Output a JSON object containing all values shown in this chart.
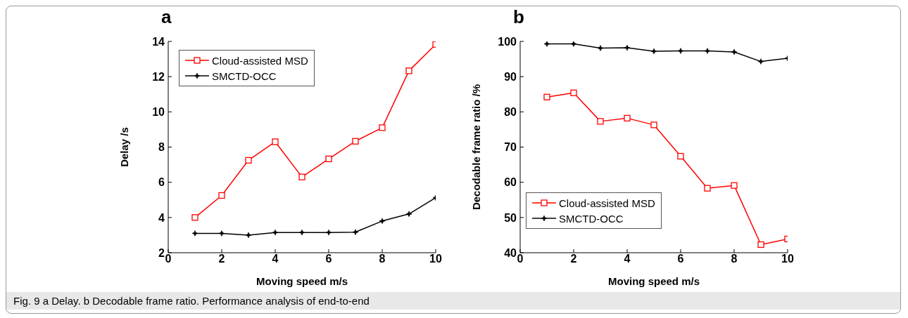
{
  "chart_data": [
    {
      "type": "line",
      "title": "a",
      "xlabel": "Moving speed m/s",
      "ylabel": "Delay /s",
      "x": [
        1,
        2,
        3,
        4,
        5,
        6,
        7,
        8,
        9,
        10
      ],
      "series": [
        {
          "name": "Cloud-assisted MSD",
          "color": "#ff0000",
          "marker": "square",
          "values": [
            4.0,
            5.25,
            7.25,
            8.3,
            6.3,
            7.33,
            8.33,
            9.1,
            12.33,
            13.83
          ]
        },
        {
          "name": "SMCTD-OCC",
          "color": "#000000",
          "marker": "star",
          "values": [
            3.1,
            3.1,
            3.0,
            3.15,
            3.15,
            3.15,
            3.17,
            3.8,
            4.2,
            5.12
          ]
        }
      ],
      "xlim": [
        0,
        10
      ],
      "xticks": [
        0,
        2,
        4,
        6,
        8,
        10
      ],
      "ylim": [
        2,
        14
      ],
      "yticks": [
        2,
        4,
        6,
        8,
        10,
        12,
        14
      ],
      "grid": false,
      "legend": "top left",
      "annotations": [
        "Fig. 9 a Delay. b Decodable frame ratio. Performance analysis of end-to-end"
      ]
    },
    {
      "type": "line",
      "title": "b",
      "xlabel": "Moving speed m/s",
      "ylabel": "Decodable frame ratio /%",
      "x": [
        1,
        2,
        3,
        4,
        5,
        6,
        7,
        8,
        9,
        10
      ],
      "series": [
        {
          "name": "Cloud-assisted MSD",
          "color": "#ff0000",
          "marker": "square",
          "values": [
            84.2,
            85.4,
            77.3,
            78.2,
            76.3,
            67.4,
            58.3,
            59.1,
            42.3,
            43.9
          ]
        },
        {
          "name": "SMCTD-OCC",
          "color": "#000000",
          "marker": "star",
          "values": [
            99.3,
            99.3,
            98.1,
            98.2,
            97.2,
            97.3,
            97.3,
            97.0,
            94.3,
            95.2
          ]
        }
      ],
      "xlim": [
        0,
        10
      ],
      "xticks": [
        0,
        2,
        4,
        6,
        8,
        10
      ],
      "ylim": [
        40,
        100
      ],
      "yticks": [
        40,
        50,
        60,
        70,
        80,
        90,
        100
      ],
      "grid": false,
      "legend": "bottom left"
    }
  ]
}
